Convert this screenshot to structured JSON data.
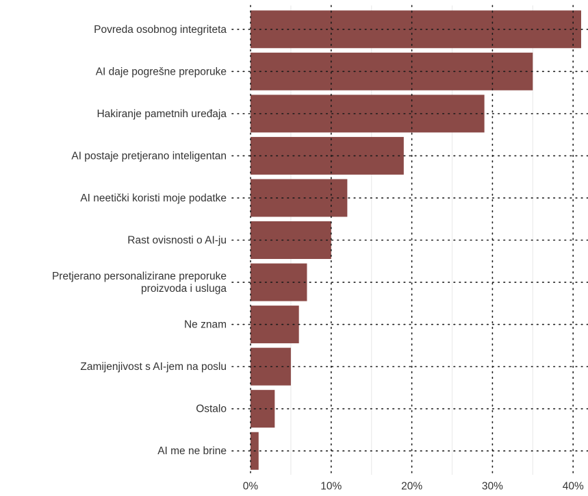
{
  "chart_data": {
    "type": "bar",
    "orientation": "horizontal",
    "categories": [
      "Povreda osobnog integriteta",
      "AI daje pogrešne preporuke",
      "Hakiranje pametnih uređaja",
      "AI postaje pretjerano inteligentan",
      "AI neetički koristi moje podatke",
      "Rast ovisnosti o AI-ju",
      "Pretjerano personalizirane preporuke proizvoda i usluga",
      "Ne znam",
      "Zamijenjivost s AI-jem na poslu",
      "Ostalo",
      "AI me ne brine"
    ],
    "category_lines": [
      [
        "Povreda osobnog integriteta"
      ],
      [
        "AI daje pogrešne preporuke"
      ],
      [
        "Hakiranje pametnih uređaja"
      ],
      [
        "AI postaje pretjerano inteligentan"
      ],
      [
        "AI neetički koristi moje podatke"
      ],
      [
        "Rast ovisnosti o AI-ju"
      ],
      [
        "Pretjerano personalizirane preporuke",
        "proizvoda i usluga"
      ],
      [
        "Ne znam"
      ],
      [
        "Zamijenjivost s AI-jem na poslu"
      ],
      [
        "Ostalo"
      ],
      [
        "AI me ne brine"
      ]
    ],
    "values": [
      41,
      35,
      29,
      19,
      12,
      10,
      7,
      6,
      5,
      3,
      1
    ],
    "value_unit": "%",
    "xlim": [
      0,
      41
    ],
    "x_ticks": [
      0,
      10,
      20,
      30,
      40
    ],
    "x_tick_labels": [
      "0%",
      "10%",
      "20%",
      "30%",
      "40%"
    ],
    "title": "",
    "xlabel": "",
    "ylabel": "",
    "grid": true,
    "legend": "none",
    "colors": {
      "bar": "#8b4a47",
      "major_grid": "#1a1a1a",
      "minor_grid": "#ebebeb",
      "text": "#333333"
    }
  }
}
